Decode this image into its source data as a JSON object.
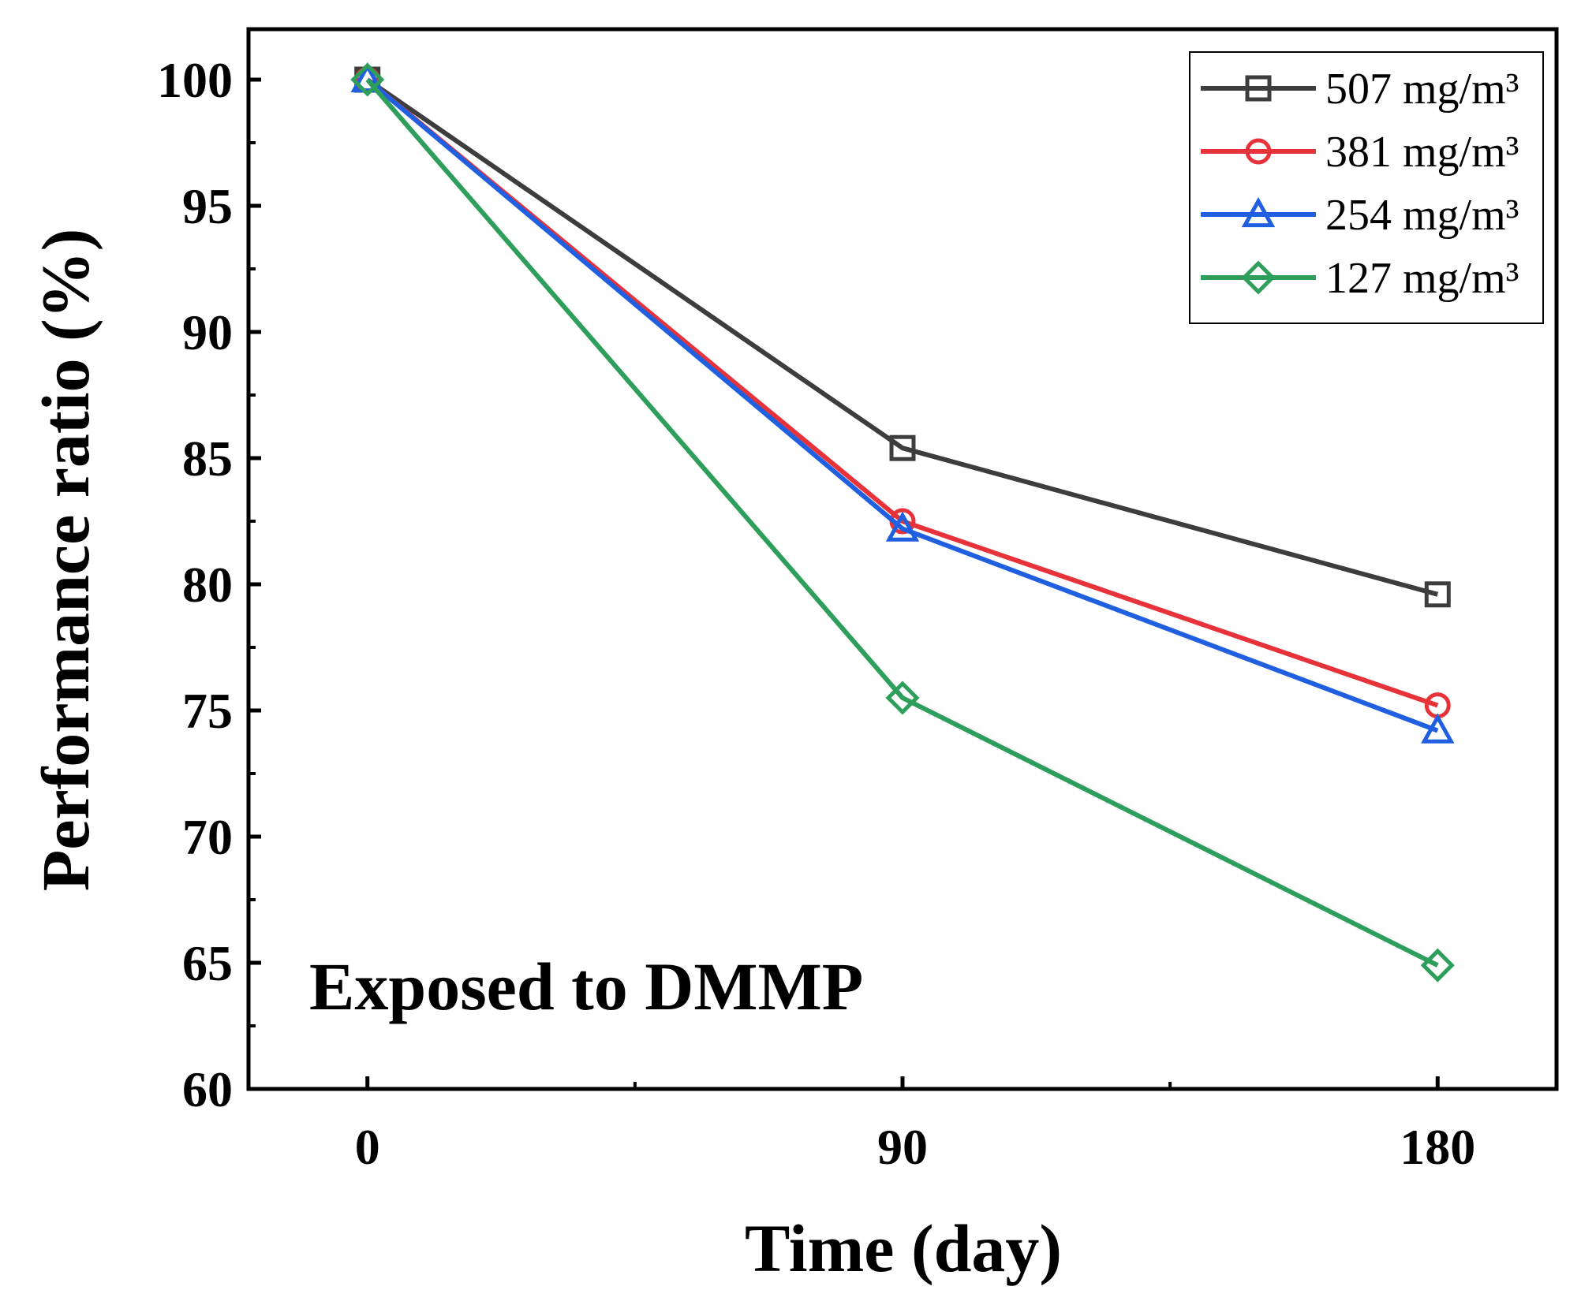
{
  "chart_data": {
    "type": "line",
    "title": "",
    "xlabel": "Time (day)",
    "ylabel": "Performance ratio (%)",
    "x": [
      0,
      90,
      180
    ],
    "xlim": [
      -20,
      200
    ],
    "ylim": [
      60,
      102
    ],
    "xticks": [
      0,
      90,
      180
    ],
    "yticks": [
      60,
      65,
      70,
      75,
      80,
      85,
      90,
      95,
      100
    ],
    "grid": false,
    "legend_position": "top-right",
    "annotation": "Exposed to DMMP",
    "series": [
      {
        "name": "507 mg/m³",
        "color": "#3d3d3d",
        "marker": "square",
        "values": [
          100,
          85.4,
          79.6
        ]
      },
      {
        "name": "381 mg/m³",
        "color": "#e8323a",
        "marker": "circle",
        "values": [
          100,
          82.5,
          75.2
        ]
      },
      {
        "name": "254 mg/m³",
        "color": "#1f5fe0",
        "marker": "triangle",
        "values": [
          100,
          82.2,
          74.2
        ]
      },
      {
        "name": "127 mg/m³",
        "color": "#2e9e5b",
        "marker": "diamond",
        "values": [
          100,
          75.5,
          64.9
        ]
      }
    ]
  }
}
